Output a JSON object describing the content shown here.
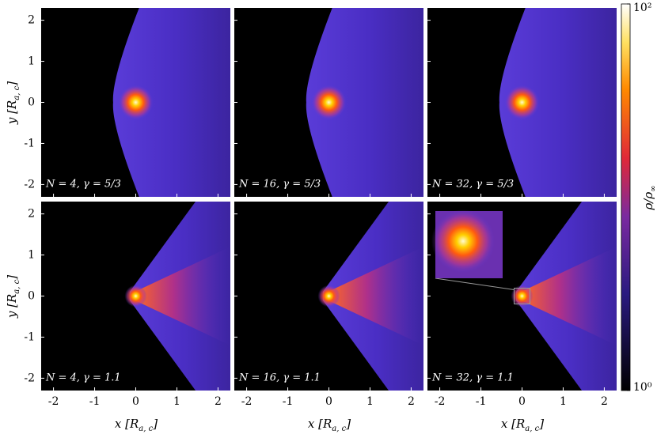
{
  "chart_data": {
    "type": "heatmap",
    "xlabel": [
      "x [R",
      "a, c",
      "]"
    ],
    "ylabel": [
      "y [R",
      "a, c",
      "]"
    ],
    "xlim": [
      -2.3,
      2.3
    ],
    "ylim": [
      -2.3,
      2.3
    ],
    "xticks": [
      -2,
      -1,
      0,
      1,
      2
    ],
    "yticks": [
      -2,
      -1,
      0,
      1,
      2
    ],
    "panels": [
      {
        "label": "N = 4, γ = 5/3"
      },
      {
        "label": "N = 16, γ = 5/3"
      },
      {
        "label": "N = 32, γ = 5/3"
      },
      {
        "label": "N = 4, γ = 1.1"
      },
      {
        "label": "N = 16, γ = 1.1"
      },
      {
        "label": "N = 32, γ = 1.1"
      }
    ],
    "colorbar": {
      "label": [
        "ρ/ρ",
        "∞"
      ],
      "log": true,
      "lim": [
        1,
        100
      ],
      "ticks": [
        {
          "value": 1,
          "label": "10⁰"
        },
        {
          "value": 100,
          "label": "10²"
        }
      ]
    }
  }
}
